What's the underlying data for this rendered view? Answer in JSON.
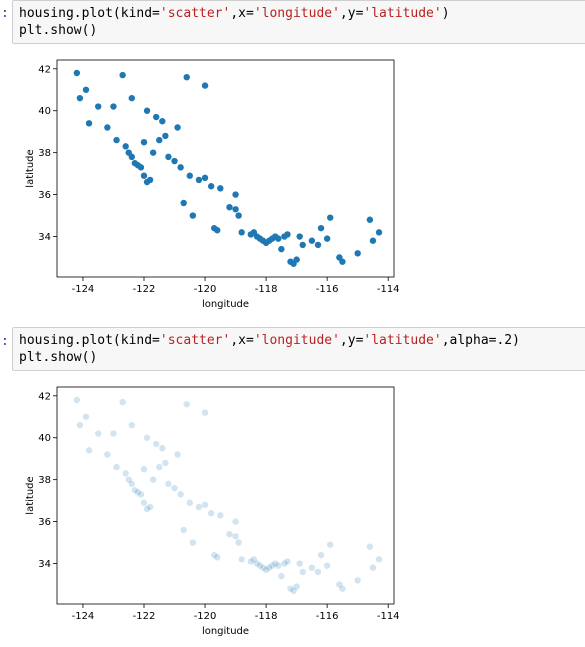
{
  "cells": [
    {
      "prompt": ":",
      "code": [
        [
          "housing.plot(kind=",
          "'scatter'",
          ",x=",
          "'longitude'",
          ",y=",
          "'latitude'",
          ")"
        ],
        [
          "plt.show()"
        ]
      ]
    },
    {
      "prompt": ":",
      "code": [
        [
          "housing.plot(kind=",
          "'scatter'",
          ",x=",
          "'longitude'",
          ",y=",
          "'latitude'",
          ",alpha=.2)"
        ],
        [
          "plt.show()"
        ]
      ]
    }
  ],
  "chart_data": [
    {
      "type": "scatter",
      "xlabel": "longitude",
      "ylabel": "latitude",
      "color": "#1f77b4",
      "alpha": 1,
      "xlim": [
        -124.85,
        -113.81
      ],
      "ylim": [
        32.07,
        42.42
      ],
      "xticks": [
        -124,
        -122,
        -120,
        -118,
        -116,
        -114
      ],
      "yticks": [
        34,
        36,
        38,
        40,
        42
      ],
      "x": [
        -124.2,
        -124.1,
        -123.9,
        -123.8,
        -123.5,
        -123.2,
        -122.9,
        -122.6,
        -122.4,
        -122.3,
        -122.2,
        -122.1,
        -122.0,
        -121.9,
        -121.8,
        -121.5,
        -121.3,
        -121.0,
        -120.8,
        -120.5,
        -120.2,
        -120.0,
        -119.8,
        -119.7,
        -119.5,
        -119.2,
        -119.0,
        -118.8,
        -118.5,
        -118.3,
        -118.2,
        -118.1,
        -118.0,
        -117.9,
        -117.8,
        -117.6,
        -117.4,
        -117.2,
        -117.1,
        -117.0,
        -116.8,
        -116.5,
        -116.3,
        -116.0,
        -115.6,
        -115.5,
        -115.0,
        -114.6,
        -114.5,
        -114.3,
        -122.4,
        -121.9,
        -121.6,
        -120.6,
        -120.0,
        -122.7,
        -122.5,
        -121.2,
        -120.9,
        -121.4,
        -119.0,
        -118.9,
        -117.3,
        -116.9,
        -116.2,
        -115.9,
        -117.5,
        -120.4,
        -120.7,
        -122.0,
        -123.0,
        -121.7,
        -119.6,
        -118.4,
        -117.7
      ],
      "values": [
        41.8,
        40.6,
        41.0,
        39.4,
        40.2,
        39.2,
        38.6,
        38.3,
        37.8,
        37.5,
        37.4,
        37.3,
        36.9,
        36.6,
        36.7,
        38.6,
        38.8,
        37.6,
        37.3,
        36.9,
        36.7,
        36.8,
        36.4,
        34.4,
        36.3,
        35.4,
        35.3,
        34.2,
        34.1,
        34.0,
        33.9,
        33.8,
        33.7,
        33.8,
        33.9,
        33.9,
        34.0,
        32.8,
        32.7,
        32.9,
        33.6,
        33.8,
        33.6,
        33.9,
        33.0,
        32.8,
        33.2,
        34.8,
        33.8,
        34.2,
        40.6,
        40.0,
        39.7,
        41.6,
        41.2,
        41.7,
        38.0,
        37.8,
        39.2,
        39.5,
        36.0,
        35.0,
        34.1,
        34.0,
        34.4,
        34.9,
        33.4,
        35.0,
        35.6,
        38.5,
        40.2,
        38.0,
        34.3,
        34.2,
        34.0
      ]
    },
    {
      "type": "scatter",
      "xlabel": "longitude",
      "ylabel": "latitude",
      "color": "#1f77b4",
      "alpha": 0.2,
      "xlim": [
        -124.85,
        -113.81
      ],
      "ylim": [
        32.07,
        42.42
      ],
      "xticks": [
        -124,
        -122,
        -120,
        -118,
        -116,
        -114
      ],
      "yticks": [
        34,
        36,
        38,
        40,
        42
      ],
      "x": [
        -124.2,
        -124.1,
        -123.9,
        -123.8,
        -123.5,
        -123.2,
        -122.9,
        -122.6,
        -122.4,
        -122.3,
        -122.2,
        -122.1,
        -122.0,
        -121.9,
        -121.8,
        -121.5,
        -121.3,
        -121.0,
        -120.8,
        -120.5,
        -120.2,
        -120.0,
        -119.8,
        -119.7,
        -119.5,
        -119.2,
        -119.0,
        -118.8,
        -118.5,
        -118.3,
        -118.2,
        -118.1,
        -118.0,
        -117.9,
        -117.8,
        -117.6,
        -117.4,
        -117.2,
        -117.1,
        -117.0,
        -116.8,
        -116.5,
        -116.3,
        -116.0,
        -115.6,
        -115.5,
        -115.0,
        -114.6,
        -114.5,
        -114.3,
        -122.4,
        -121.9,
        -121.6,
        -120.6,
        -120.0,
        -122.7,
        -122.5,
        -121.2,
        -120.9,
        -121.4,
        -119.0,
        -118.9,
        -117.3,
        -116.9,
        -116.2,
        -115.9,
        -117.5,
        -120.4,
        -120.7,
        -122.0,
        -123.0,
        -121.7,
        -119.6,
        -118.4,
        -117.7
      ],
      "values": [
        41.8,
        40.6,
        41.0,
        39.4,
        40.2,
        39.2,
        38.6,
        38.3,
        37.8,
        37.5,
        37.4,
        37.3,
        36.9,
        36.6,
        36.7,
        38.6,
        38.8,
        37.6,
        37.3,
        36.9,
        36.7,
        36.8,
        36.4,
        34.4,
        36.3,
        35.4,
        35.3,
        34.2,
        34.1,
        34.0,
        33.9,
        33.8,
        33.7,
        33.8,
        33.9,
        33.9,
        34.0,
        32.8,
        32.7,
        32.9,
        33.6,
        33.8,
        33.6,
        33.9,
        33.0,
        32.8,
        33.2,
        34.8,
        33.8,
        34.2,
        40.6,
        40.0,
        39.7,
        41.6,
        41.2,
        41.7,
        38.0,
        37.8,
        39.2,
        39.5,
        36.0,
        35.0,
        34.1,
        34.0,
        34.4,
        34.9,
        33.4,
        35.0,
        35.6,
        38.5,
        40.2,
        38.0,
        34.3,
        34.2,
        34.0
      ]
    }
  ]
}
